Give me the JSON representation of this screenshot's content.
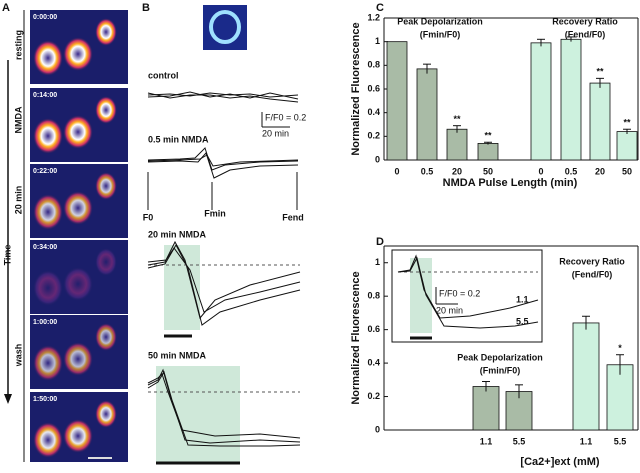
{
  "panel_a": {
    "label": "A",
    "timestamps": [
      "0:00:00",
      "0:14:00",
      "0:22:00",
      "0:34:00",
      "1:00:00",
      "1:50:00"
    ],
    "phases": [
      "resting",
      "NMDA",
      "20 min",
      "wash"
    ],
    "axis": "Time"
  },
  "panel_b": {
    "label": "B",
    "traces": [
      "control",
      "0.5 min NMDA",
      "20 min NMDA",
      "50 min NMDA"
    ],
    "scale_y": "F/F0 = 0.2",
    "scale_x": "20 min",
    "markers": [
      "F0",
      "Fmin",
      "Fend"
    ]
  },
  "chart_data": [
    {
      "type": "bar",
      "label": "C",
      "y_label": "Normalized Fluorescence",
      "x_label": "NMDA Pulse Length (min)",
      "ylim": [
        0,
        1.2
      ],
      "yticks": [
        0,
        0.2,
        0.4,
        0.6,
        0.8,
        1,
        1.2
      ],
      "groups": [
        {
          "name": "Peak Depolarization",
          "subtitle": "(Fmin/F0)",
          "color": "#a9bba6",
          "categories": [
            "0",
            "0.5",
            "20",
            "50"
          ],
          "values": [
            1,
            0.77,
            0.26,
            0.14
          ],
          "errors": [
            0,
            0.04,
            0.03,
            0.01
          ],
          "marks": [
            null,
            null,
            "**",
            "**"
          ]
        },
        {
          "name": "Recovery Ratio",
          "subtitle": "(Fend/F0)",
          "color": "#cdf1de",
          "categories": [
            "0",
            "0.5",
            "20",
            "50"
          ],
          "values": [
            0.99,
            1.02,
            0.65,
            0.24
          ],
          "errors": [
            0.03,
            0.02,
            0.04,
            0.02
          ],
          "marks": [
            null,
            null,
            "**",
            "**"
          ]
        }
      ]
    },
    {
      "type": "bar",
      "label": "D",
      "y_label": "Normalized Fluorescence",
      "x_label": "[Ca2+]ext (mM)",
      "ylim": [
        0,
        1.1
      ],
      "yticks": [
        0,
        0.2,
        0.4,
        0.6,
        0.8,
        1
      ],
      "groups": [
        {
          "name": "Peak Depolarization",
          "subtitle": "(Fmin/F0)",
          "color": "#a9bba6",
          "categories": [
            "1.1",
            "5.5"
          ],
          "values": [
            0.26,
            0.23
          ],
          "errors": [
            0.03,
            0.04
          ],
          "marks": [
            null,
            null
          ]
        },
        {
          "name": "Recovery Ratio",
          "subtitle": "(Fend/F0)",
          "color": "#cdf1de",
          "categories": [
            "1.1",
            "5.5"
          ],
          "values": [
            0.64,
            0.39
          ],
          "errors": [
            0.04,
            0.06
          ],
          "marks": [
            null,
            "*"
          ]
        }
      ],
      "inset": {
        "scale_y": "F/F0 = 0.2",
        "scale_x": "20 min",
        "trace_labels": [
          "1.1",
          "5.5"
        ]
      }
    }
  ]
}
